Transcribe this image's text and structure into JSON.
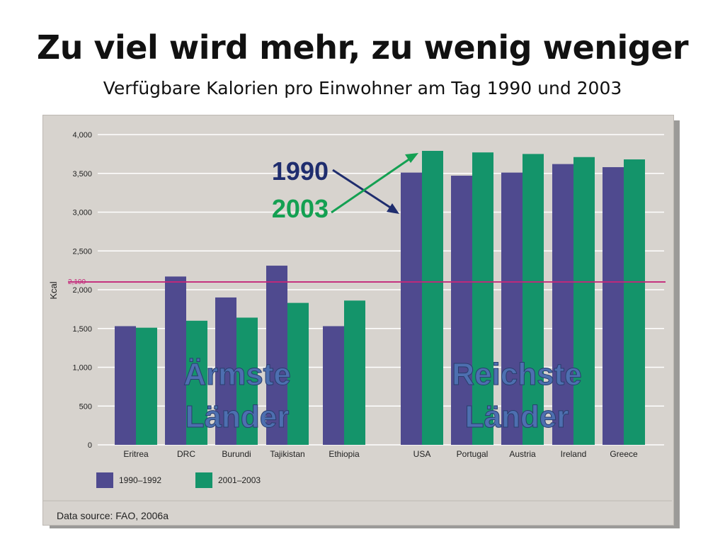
{
  "title": "Zu viel wird mehr, zu wenig weniger",
  "subtitle": "Verfügbare Kalorien pro Einwohner am Tag 1990 und 2003",
  "chart_data": {
    "type": "bar",
    "title": "",
    "xlabel": "",
    "ylabel": "Kcal",
    "ylim": [
      0,
      4000
    ],
    "yticks": [
      0,
      500,
      1000,
      1500,
      2000,
      2500,
      3000,
      3500,
      4000
    ],
    "ytick_labels": [
      "0",
      "500",
      "1,000",
      "1,500",
      "2,000",
      "2,500",
      "3,000",
      "3,500",
      "4,000"
    ],
    "grid": true,
    "categories": [
      "Eritrea",
      "DRC",
      "Burundi",
      "Tajikistan",
      "Ethiopia",
      "USA",
      "Portugal",
      "Austria",
      "Ireland",
      "Greece"
    ],
    "series": [
      {
        "name": "1990–1992",
        "values": [
          1530,
          2170,
          1900,
          2310,
          1530,
          3510,
          3470,
          3510,
          3620,
          3580
        ]
      },
      {
        "name": "2001–2003",
        "values": [
          1510,
          1600,
          1640,
          1830,
          1860,
          3790,
          3770,
          3750,
          3710,
          3680
        ]
      }
    ],
    "reference_line": {
      "value": 2100,
      "label": "2,100"
    },
    "group_labels": [
      {
        "lines": [
          "Ärmste",
          "Länder"
        ]
      },
      {
        "lines": [
          "Reichste",
          "Länder"
        ]
      }
    ],
    "year_annotations": [
      {
        "text": "1990",
        "color": "#1f2d6e"
      },
      {
        "text": "2003",
        "color": "#14a052"
      }
    ],
    "legend_placement": "bottom-left",
    "source": "Data source: FAO, 2006a",
    "colors": {
      "series1": "#4f4a8f",
      "series2": "#14946a",
      "reference": "#c4287a",
      "grid": "#ffffff",
      "group_label": "#4d6fb0"
    }
  }
}
